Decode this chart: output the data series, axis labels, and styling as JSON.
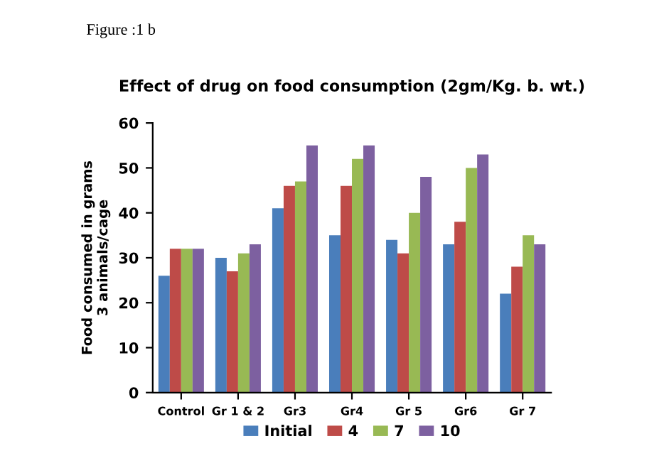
{
  "chart_data": {
    "type": "bar",
    "title": "Effect of drug on food consumption (2gm/Kg. b. wt.)",
    "ylabel": "Food consumed in grams\n3 animals/cage",
    "annotations": [
      "Figure :1 b"
    ],
    "categories": [
      "Control",
      "Gr 1 & 2",
      "Gr3",
      "Gr4",
      "Gr 5",
      "Gr6",
      "Gr 7"
    ],
    "series": [
      {
        "name": "Initial",
        "color": "#4a7ebb",
        "values": [
          26,
          30,
          41,
          35,
          34,
          33,
          22
        ]
      },
      {
        "name": "4",
        "color": "#be4b48",
        "values": [
          32,
          27,
          46,
          46,
          31,
          38,
          28
        ]
      },
      {
        "name": "7",
        "color": "#98b954",
        "values": [
          32,
          31,
          47,
          52,
          40,
          50,
          35
        ]
      },
      {
        "name": "10",
        "color": "#7d60a0",
        "values": [
          32,
          33,
          55,
          55,
          48,
          53,
          33
        ]
      }
    ],
    "ylim": [
      0,
      60
    ],
    "yticks": [
      0,
      10,
      20,
      30,
      40,
      50,
      60
    ],
    "grid": false,
    "legend": "bottom"
  }
}
